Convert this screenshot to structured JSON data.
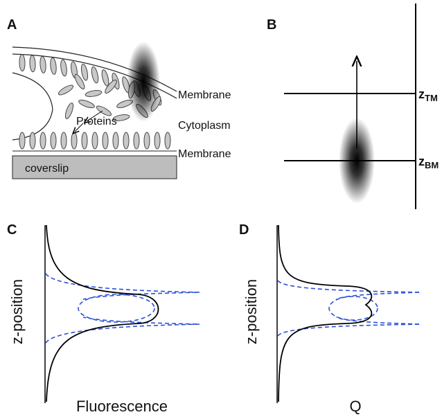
{
  "panels": [
    {
      "label": "A",
      "annotations": {
        "top_membrane": "Membrane",
        "cytoplasm": "Cytoplasm",
        "proteins": "Proteins",
        "bottom_membrane": "Membrane",
        "coverslip": "coverslip"
      }
    },
    {
      "label": "B",
      "planes": [
        {
          "symbol": "z",
          "subscript": "TM"
        },
        {
          "symbol": "z",
          "subscript": "BM"
        }
      ]
    },
    {
      "label": "C",
      "y_label": "z-position",
      "x_label": "Fluorescence"
    },
    {
      "label": "D",
      "y_label": "z-position",
      "x_label": "Q"
    }
  ]
}
